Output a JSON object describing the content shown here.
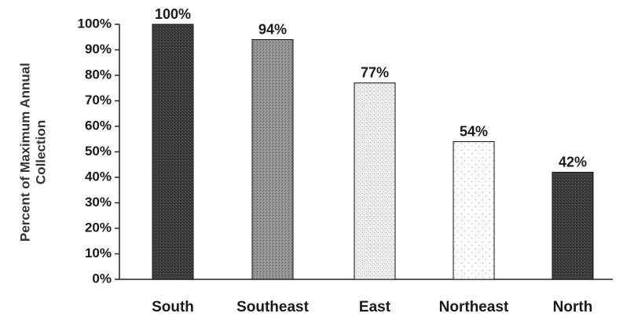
{
  "chart_data": {
    "type": "bar",
    "categories": [
      "South",
      "Southeast",
      "East",
      "Northeast",
      "North"
    ],
    "values": [
      100,
      94,
      77,
      54,
      42
    ],
    "data_labels": [
      "100%",
      "94%",
      "77%",
      "54%",
      "42%"
    ],
    "title": "",
    "xlabel": "",
    "ylabel_lines": [
      "Percent of Maximum Annual",
      "Collection"
    ],
    "ylim": [
      0,
      100
    ],
    "yticks": [
      0,
      10,
      20,
      30,
      40,
      50,
      60,
      70,
      80,
      90,
      100
    ],
    "ytick_labels": [
      "0%",
      "10%",
      "20%",
      "30%",
      "40%",
      "50%",
      "60%",
      "70%",
      "80%",
      "90%",
      "100%"
    ],
    "grid": false,
    "legend": "none",
    "bar_colors": [
      "#3a3a3a",
      "#8a8a8a",
      "#e4e4e4",
      "#fbfbfb",
      "#333333"
    ],
    "bar_patterns": [
      "dense-dark",
      "medium-gray",
      "light-stipple",
      "sparse-dots",
      "dense-dark"
    ]
  }
}
